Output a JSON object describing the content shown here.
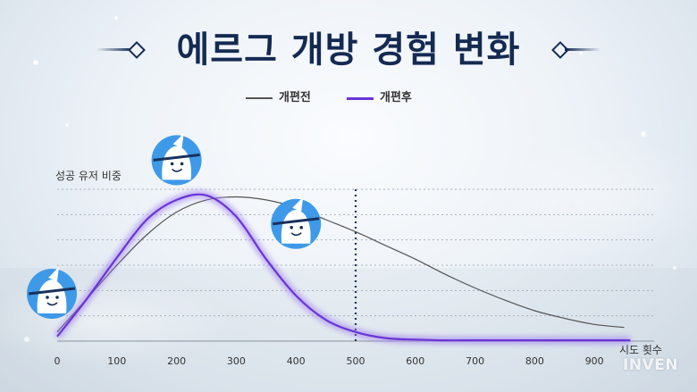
{
  "chart_data": {
    "type": "line",
    "title": "에르그 개방 경험 변화",
    "ylabel": "성공 유저 비중",
    "xlabel": "시도 횟수",
    "xlim": [
      0,
      1000
    ],
    "ylim": [
      0,
      100
    ],
    "x_ticks": [
      "0",
      "100",
      "200",
      "300",
      "400",
      "500",
      "600",
      "700",
      "800",
      "900"
    ],
    "legend_position": "top-center",
    "grid": "horizontal-dotted",
    "reference_line_x": 500,
    "series": [
      {
        "name": "개편전",
        "color": "#555555",
        "x": [
          0,
          50,
          100,
          150,
          200,
          250,
          300,
          350,
          400,
          450,
          500,
          550,
          600,
          650,
          700,
          750,
          800,
          850,
          900,
          950
        ],
        "y": [
          6,
          28,
          50,
          70,
          85,
          93,
          95,
          93,
          88,
          80,
          72,
          63,
          54,
          44,
          35,
          27,
          20,
          15,
          11,
          9
        ]
      },
      {
        "name": "개편후",
        "color": "#6a35d6",
        "x": [
          0,
          50,
          100,
          150,
          200,
          250,
          300,
          350,
          400,
          450,
          500,
          550,
          600,
          650,
          700,
          750,
          800,
          850,
          900,
          950,
          960
        ],
        "y": [
          3,
          28,
          55,
          80,
          93,
          96,
          82,
          54,
          30,
          14,
          6,
          2,
          1,
          0.5,
          0.5,
          0.5,
          0.5,
          0.5,
          0.5,
          0.5,
          0.5
        ]
      }
    ]
  },
  "watermark": "INVEN",
  "icons": [
    "smiling-ghost-icon",
    "smiling-ghost-icon",
    "smiling-ghost-icon"
  ]
}
